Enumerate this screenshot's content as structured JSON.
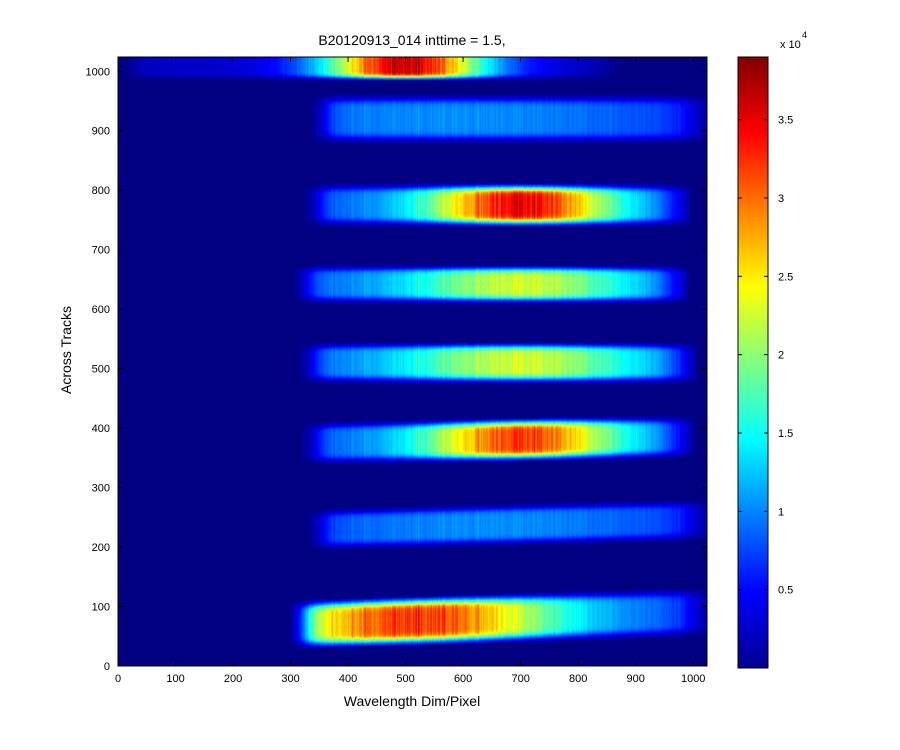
{
  "chart_data": {
    "type": "heatmap",
    "title": "B20120913_014 inttime = 1.5,",
    "xlabel": "Wavelength Dim/Pixel",
    "ylabel": "Across Tracks",
    "xlim": [
      0,
      1024
    ],
    "ylim": [
      0,
      1024
    ],
    "x_ticks": [
      0,
      100,
      200,
      300,
      400,
      500,
      600,
      700,
      800,
      900,
      1000
    ],
    "y_ticks": [
      0,
      100,
      200,
      300,
      400,
      500,
      600,
      700,
      800,
      900,
      1000
    ],
    "colormap": "jet",
    "background_color": "#00008f",
    "colorbar": {
      "range": [
        0,
        39000
      ],
      "ticks": [
        5000,
        10000,
        15000,
        20000,
        25000,
        30000,
        35000
      ],
      "tick_labels": [
        "0.5",
        "1",
        "1.5",
        "2",
        "2.5",
        "3",
        "3.5"
      ],
      "multiplier": "x 10",
      "exponent": "4"
    },
    "tracks": [
      {
        "center_start": 1010,
        "center_end": 1010,
        "half_width": 20,
        "x_start": 30,
        "x_end": 840,
        "peak_x": 500,
        "peak_value": 38500,
        "spread": 140,
        "floor": 3000
      },
      {
        "center_start": 920,
        "center_end": 920,
        "half_width": 32,
        "x_start": 360,
        "x_end": 1000,
        "peak_x": 600,
        "peak_value": 11000,
        "spread": 420,
        "floor": 5000
      },
      {
        "center_start": 775,
        "center_end": 775,
        "half_width": 28,
        "x_start": 350,
        "x_end": 970,
        "peak_x": 700,
        "peak_value": 37000,
        "spread": 160,
        "floor": 9000
      },
      {
        "center_start": 642,
        "center_end": 642,
        "half_width": 25,
        "x_start": 330,
        "x_end": 965,
        "peak_x": 700,
        "peak_value": 24000,
        "spread": 200,
        "floor": 9000
      },
      {
        "center_start": 510,
        "center_end": 510,
        "half_width": 27,
        "x_start": 340,
        "x_end": 980,
        "peak_x": 700,
        "peak_value": 24000,
        "spread": 210,
        "floor": 9000
      },
      {
        "center_start": 375,
        "center_end": 385,
        "half_width": 28,
        "x_start": 345,
        "x_end": 975,
        "peak_x": 700,
        "peak_value": 34000,
        "spread": 170,
        "floor": 9000
      },
      {
        "center_start": 230,
        "center_end": 245,
        "half_width": 27,
        "x_start": 355,
        "x_end": 1000,
        "peak_x": 650,
        "peak_value": 11000,
        "spread": 380,
        "floor": 5000
      },
      {
        "center_start": 70,
        "center_end": 90,
        "half_width": 32,
        "x_start": 325,
        "x_end": 1000,
        "peak_x": 520,
        "peak_value": 34000,
        "spread": 250,
        "floor": 8000
      }
    ]
  }
}
